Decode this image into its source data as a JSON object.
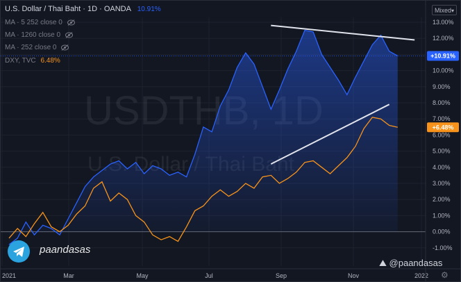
{
  "legend": {
    "title": "U.S. Dollar / Thai Baht · 1D · OANDA",
    "main_value": "10.91%",
    "ma_lines": [
      "MA · 5 252 close 0",
      "MA · 1260 close 0",
      "MA · 252 close 0"
    ],
    "dxy_label": "DXY, TVC",
    "dxy_value": "6.48%"
  },
  "scale_mode": "Mixed",
  "watermark": {
    "symbol": "USDTHB, 1D",
    "name": "U.S. Dollar / Thai Baht"
  },
  "footer": {
    "telegram": "paandasas",
    "author": "@paandasas"
  },
  "colors": {
    "background": "#131722",
    "usdthb": "#2962ff",
    "dxy": "#f7931a",
    "trendline": "#e0e3eb",
    "zero_line": "#787b86"
  },
  "icons": {
    "telegram": "paper-plane-icon",
    "author": "tradingview-logo-icon",
    "settings": "gear-icon",
    "eye": "eye-off-icon"
  },
  "chart_data": {
    "type": "area",
    "x_tick_labels": [
      "2021",
      "Mar",
      "May",
      "Jul",
      "Sep",
      "Nov",
      "2022"
    ],
    "y_tick_labels": [
      "13.00%",
      "12.00%",
      "11.00%",
      "10.00%",
      "9.00%",
      "8.00%",
      "7.00%",
      "6.00%",
      "5.00%",
      "4.00%",
      "3.00%",
      "2.00%",
      "1.00%",
      "0.00%",
      "-1.00%"
    ],
    "ylim": [
      -1.6,
      13.6
    ],
    "xlim": [
      0,
      47
    ],
    "x_unit": "weeks from start",
    "series": [
      {
        "name": "U.S. Dollar / Thai Baht",
        "style": "area",
        "last_label": "+10.91%",
        "points": [
          [
            0,
            -0.8
          ],
          [
            1,
            -0.4
          ],
          [
            2,
            0.6
          ],
          [
            3,
            -0.2
          ],
          [
            4,
            0.4
          ],
          [
            5,
            0.2
          ],
          [
            6,
            -0.2
          ],
          [
            7,
            0.8
          ],
          [
            8,
            1.8
          ],
          [
            9,
            2.8
          ],
          [
            10,
            3.4
          ],
          [
            11,
            3.8
          ],
          [
            12,
            4.2
          ],
          [
            13,
            4.4
          ],
          [
            14,
            3.9
          ],
          [
            15,
            4.3
          ],
          [
            16,
            3.6
          ],
          [
            17,
            4.1
          ],
          [
            18,
            3.9
          ],
          [
            19,
            3.5
          ],
          [
            20,
            3.7
          ],
          [
            21,
            3.4
          ],
          [
            22,
            4.8
          ],
          [
            23,
            6.5
          ],
          [
            24,
            6.2
          ],
          [
            25,
            7.8
          ],
          [
            26,
            8.8
          ],
          [
            27,
            10.2
          ],
          [
            28,
            11.1
          ],
          [
            29,
            10.4
          ],
          [
            30,
            9.0
          ],
          [
            31,
            7.6
          ],
          [
            32,
            8.8
          ],
          [
            33,
            10.1
          ],
          [
            34,
            11.2
          ],
          [
            35,
            12.5
          ],
          [
            36,
            12.4
          ],
          [
            37,
            11.0
          ],
          [
            38,
            10.2
          ],
          [
            39,
            9.4
          ],
          [
            40,
            8.5
          ],
          [
            41,
            9.6
          ],
          [
            42,
            10.6
          ],
          [
            43,
            11.6
          ],
          [
            44,
            12.2
          ],
          [
            45,
            11.2
          ],
          [
            46,
            10.91
          ]
        ]
      },
      {
        "name": "DXY, TVC",
        "style": "line",
        "last_label": "+6.48%",
        "points": [
          [
            0,
            -0.4
          ],
          [
            1,
            0.2
          ],
          [
            2,
            -0.3
          ],
          [
            3,
            0.5
          ],
          [
            4,
            1.2
          ],
          [
            5,
            0.3
          ],
          [
            6,
            0.0
          ],
          [
            7,
            0.4
          ],
          [
            8,
            1.1
          ],
          [
            9,
            1.6
          ],
          [
            10,
            2.7
          ],
          [
            11,
            3.1
          ],
          [
            12,
            1.9
          ],
          [
            13,
            2.4
          ],
          [
            14,
            2.0
          ],
          [
            15,
            1.0
          ],
          [
            16,
            0.6
          ],
          [
            17,
            -0.2
          ],
          [
            18,
            -0.5
          ],
          [
            19,
            -0.3
          ],
          [
            20,
            -0.6
          ],
          [
            21,
            0.3
          ],
          [
            22,
            1.3
          ],
          [
            23,
            1.6
          ],
          [
            24,
            2.2
          ],
          [
            25,
            2.6
          ],
          [
            26,
            2.2
          ],
          [
            27,
            2.5
          ],
          [
            28,
            3.0
          ],
          [
            29,
            2.7
          ],
          [
            30,
            3.4
          ],
          [
            31,
            3.5
          ],
          [
            32,
            3.0
          ],
          [
            33,
            3.3
          ],
          [
            34,
            3.7
          ],
          [
            35,
            4.3
          ],
          [
            36,
            4.4
          ],
          [
            37,
            4.0
          ],
          [
            38,
            3.6
          ],
          [
            39,
            4.1
          ],
          [
            40,
            4.6
          ],
          [
            41,
            5.3
          ],
          [
            42,
            6.4
          ],
          [
            43,
            7.1
          ],
          [
            44,
            7.0
          ],
          [
            45,
            6.6
          ],
          [
            46,
            6.48
          ]
        ]
      }
    ],
    "trendlines": [
      {
        "from": [
          31,
          12.8
        ],
        "to": [
          48,
          11.9
        ]
      },
      {
        "from": [
          31,
          4.2
        ],
        "to": [
          45,
          7.9
        ]
      }
    ]
  }
}
